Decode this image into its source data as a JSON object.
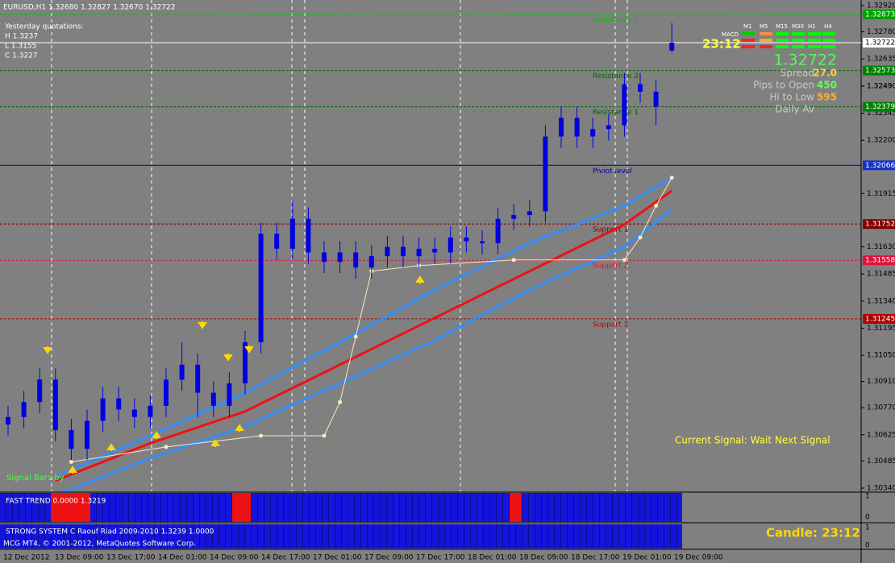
{
  "header": "EURUSD,H1  1.32680 1.32827 1.32670 1.32722",
  "yesterday": {
    "title": "Yesterday quotations:",
    "high": "H 1.3237",
    "low": "L 1.3155",
    "close": "C 1.3227"
  },
  "price_axis": {
    "range": [
      1.3034,
      1.3292
    ],
    "ticks": [
      {
        "value": 1.3292,
        "label": "1.32920"
      },
      {
        "value": 1.3278,
        "label": "1.32780"
      },
      1.32635,
      1.3249,
      {
        "value": 1.3249,
        "label": "1.32490"
      },
      1.32345,
      {
        "value": 1.322,
        "label": "1.32200"
      },
      1.31915,
      {
        "value": 1.3163,
        "label": "1.31630"
      },
      1.31485,
      {
        "value": 1.3134,
        "label": "1.31340"
      },
      1.31195,
      {
        "value": 1.3105,
        "label": "1.31050"
      },
      {
        "value": 1.3091,
        "label": "1.30910"
      },
      {
        "value": 1.3077,
        "label": "1.30770"
      },
      1.30625,
      1.30485,
      {
        "value": 1.3034,
        "label": "1.30340"
      }
    ]
  },
  "time_axis": [
    "12 Dec 2012",
    "13 Dec 09:00",
    "13 Dec 17:00",
    "14 Dec 01:00",
    "14 Dec 09:00",
    "14 Dec 17:00",
    "17 Dec 01:00",
    "17 Dec 09:00",
    "17 Dec 17:00",
    "18 Dec 01:00",
    "18 Dec 09:00",
    "18 Dec 17:00",
    "19 Dec 01:00",
    "19 Dec 09:00"
  ],
  "candles": [
    [
      1.3068,
      1.3078,
      1.3062,
      1.3072
    ],
    [
      1.3072,
      1.3086,
      1.3066,
      1.308
    ],
    [
      1.308,
      1.3098,
      1.3074,
      1.3092
    ],
    [
      1.3092,
      1.3098,
      1.3059,
      1.3065
    ],
    [
      1.3065,
      1.3071,
      1.3049,
      1.3055
    ],
    [
      1.3055,
      1.3076,
      1.3049,
      1.307
    ],
    [
      1.307,
      1.3088,
      1.3064,
      1.3082
    ],
    [
      1.3082,
      1.3088,
      1.307,
      1.3076
    ],
    [
      1.3076,
      1.3082,
      1.3066,
      1.3072
    ],
    [
      1.3072,
      1.3084,
      1.3066,
      1.3078
    ],
    [
      1.3078,
      1.3098,
      1.3072,
      1.3092
    ],
    [
      1.3092,
      1.3112,
      1.3086,
      1.31
    ],
    [
      1.31,
      1.3106,
      1.3072,
      1.3085
    ],
    [
      1.3085,
      1.3091,
      1.3072,
      1.3078
    ],
    [
      1.3078,
      1.3096,
      1.3072,
      1.309
    ],
    [
      1.309,
      1.3118,
      1.3084,
      1.3112
    ],
    [
      1.3112,
      1.3176,
      1.3106,
      1.317
    ],
    [
      1.317,
      1.3176,
      1.3156,
      1.3162
    ],
    [
      1.3162,
      1.3188,
      1.3156,
      1.3178
    ],
    [
      1.3178,
      1.3184,
      1.3154,
      1.316
    ],
    [
      1.316,
      1.3166,
      1.3149,
      1.3155
    ],
    [
      1.3155,
      1.3166,
      1.3149,
      1.316
    ],
    [
      1.316,
      1.3166,
      1.3146,
      1.3152
    ],
    [
      1.3152,
      1.3164,
      1.3146,
      1.3158
    ],
    [
      1.3158,
      1.3169,
      1.3152,
      1.3163
    ],
    [
      1.3163,
      1.3169,
      1.3152,
      1.3158
    ],
    [
      1.3158,
      1.3168,
      1.3152,
      1.3162
    ],
    [
      1.3162,
      1.3168,
      1.3154,
      1.316
    ],
    [
      1.316,
      1.3174,
      1.3154,
      1.3168
    ],
    [
      1.3168,
      1.3174,
      1.316,
      1.3166
    ],
    [
      1.3166,
      1.3172,
      1.3159,
      1.3165
    ],
    [
      1.3165,
      1.3184,
      1.3159,
      1.3178
    ],
    [
      1.3178,
      1.3186,
      1.3172,
      1.318
    ],
    [
      1.318,
      1.3188,
      1.3174,
      1.3182
    ],
    [
      1.3182,
      1.3228,
      1.3176,
      1.3222
    ],
    [
      1.3222,
      1.3238,
      1.3216,
      1.3232
    ],
    [
      1.3232,
      1.3238,
      1.3216,
      1.3222
    ],
    [
      1.3222,
      1.3232,
      1.3216,
      1.3226
    ],
    [
      1.3226,
      1.3234,
      1.322,
      1.3228
    ],
    [
      1.3228,
      1.3256,
      1.3222,
      1.325
    ],
    [
      1.325,
      1.3256,
      1.324,
      1.3246
    ],
    [
      1.3246,
      1.3252,
      1.3228,
      1.3238
    ],
    [
      1.3268,
      1.32827,
      1.3267,
      1.32722
    ]
  ],
  "averages": {
    "x": [
      3,
      9,
      15,
      21,
      27,
      33,
      39,
      42
    ],
    "series": [
      {
        "color": "#2f8fff",
        "values": [
          1.304,
          1.3062,
          1.3085,
          1.3112,
          1.314,
          1.3165,
          1.3185,
          1.32
        ]
      },
      {
        "color": "#ee1111",
        "values": [
          1.3038,
          1.3058,
          1.3075,
          1.31,
          1.3125,
          1.315,
          1.3175,
          1.3193
        ]
      },
      {
        "color": "#2f8fff",
        "values": [
          1.303,
          1.305,
          1.3067,
          1.309,
          1.3113,
          1.314,
          1.3163,
          1.3183
        ]
      }
    ]
  },
  "stop_line": {
    "color": "#ffe8c0",
    "x": [
      4,
      10,
      16,
      20,
      21,
      22,
      23,
      26,
      32,
      39,
      40,
      41,
      42
    ],
    "values": [
      1.3048,
      1.3056,
      1.3062,
      1.3062,
      1.308,
      1.3115,
      1.315,
      1.3153,
      1.3156,
      1.3156,
      1.3168,
      1.3185,
      1.32
    ]
  },
  "current_price": 1.32722,
  "levels": [
    {
      "name": "Resistance 3",
      "value": 1.32873,
      "color": "#00c000",
      "box": "#00a000"
    },
    {
      "name": "Resistance 2",
      "value": 1.32573,
      "color": "#006400",
      "box": "#008000"
    },
    {
      "name": "Resistance 1",
      "value": 1.32379,
      "color": "#006400",
      "box": "#008000"
    },
    {
      "name": "Piviot level",
      "value": 1.32066,
      "color": "#0000a0",
      "box": "#1432c8"
    },
    {
      "name": "Support 1",
      "value": 1.31752,
      "color": "#800000",
      "box": "#800000"
    },
    {
      "name": "Support 2",
      "value": 1.31558,
      "color": "#dc143c",
      "box": "#dc143c"
    },
    {
      "name": "Support 3",
      "value": 1.31245,
      "color": "#b00000",
      "box": "#b00000"
    }
  ],
  "info_panel": {
    "timer": "23:12",
    "macd": "MACD",
    "timeframes": [
      "M1",
      "M5",
      "M15",
      "M30",
      "H1",
      "H4"
    ],
    "price": "1.32722",
    "spread_label": "Spread",
    "spread": "27.0",
    "pips_label": "Pips to Open",
    "pips": "450",
    "hilo_label": "Hi to Low",
    "hilo": "595",
    "daily_label": "Daily Av"
  },
  "signal": "Current Signal: Wait Next Signal",
  "signal_bars": "Signal Bars by",
  "panels": [
    {
      "label": "FAST TREND 0.0000 1.3219",
      "axis": [
        "1",
        "0"
      ]
    },
    {
      "label": "STRONG SYSTEM C Raouf Riad 2009-2010  1.3239 1.0000",
      "axis": [
        "1",
        "0"
      ]
    }
  ],
  "candle_timer": "Candle:  23:12",
  "copyright": "MCG MT4, © 2001-2012, MetaQuotes Software Corp."
}
